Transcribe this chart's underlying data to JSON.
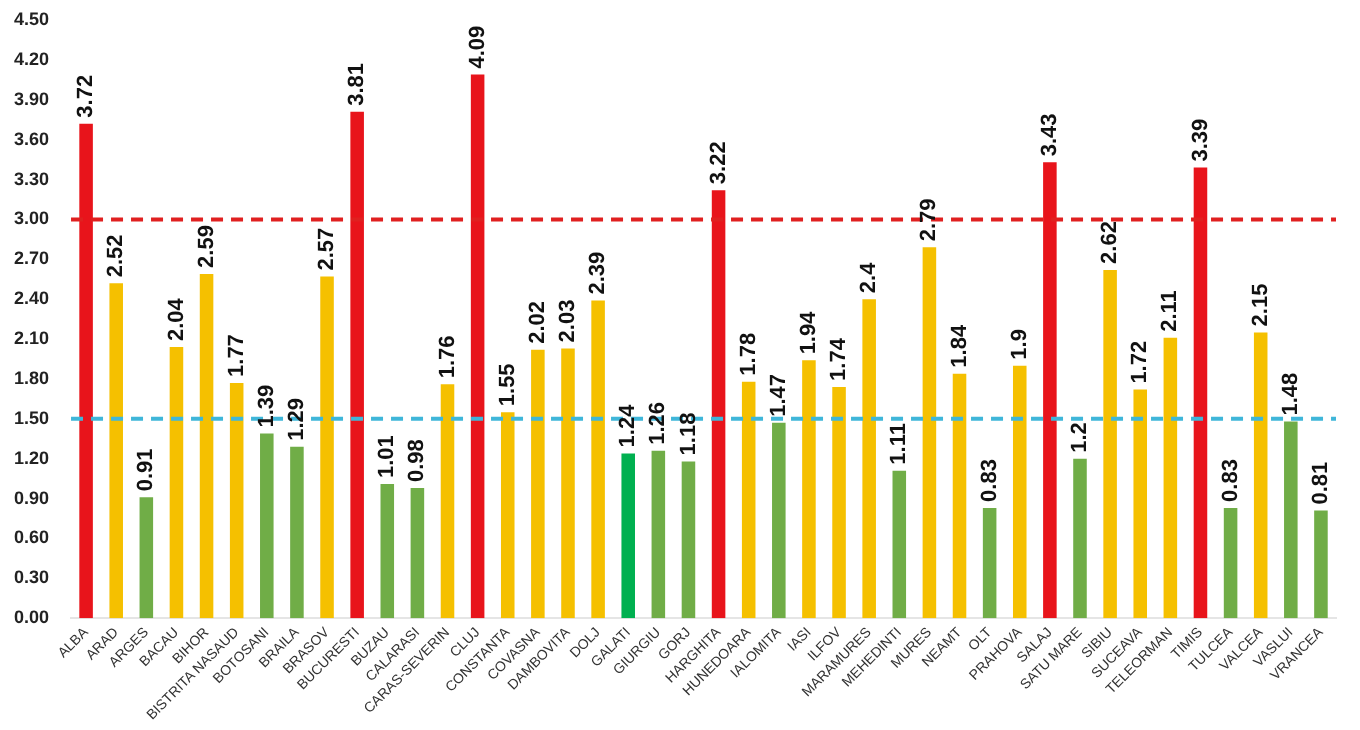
{
  "chart_data": {
    "type": "bar",
    "categories": [
      "ALBA",
      "ARAD",
      "ARGES",
      "BACAU",
      "BIHOR",
      "BISTRITA NASAUD",
      "BOTOSANI",
      "BRAILA",
      "BRASOV",
      "BUCURESTI",
      "BUZAU",
      "CALARASI",
      "CARAS-SEVERIN",
      "CLUJ",
      "CONSTANTA",
      "COVASNA",
      "DAMBOVITA",
      "DOLJ",
      "GALATI",
      "GIURGIU",
      "GORJ",
      "HARGHITA",
      "HUNEDOARA",
      "IALOMITA",
      "IASI",
      "ILFOV",
      "MARAMURES",
      "MEHEDINTI",
      "MURES",
      "NEAMT",
      "OLT",
      "PRAHOVA",
      "SALAJ",
      "SATU MARE",
      "SIBIU",
      "SUCEAVA",
      "TELEORMAN",
      "TIMIS",
      "TULCEA",
      "VALCEA",
      "VASLUI",
      "VRANCEA"
    ],
    "values": [
      3.72,
      2.52,
      0.91,
      2.04,
      2.59,
      1.77,
      1.39,
      1.29,
      2.57,
      3.81,
      1.01,
      0.98,
      1.76,
      4.09,
      1.55,
      2.02,
      2.03,
      2.39,
      1.24,
      1.26,
      1.18,
      3.22,
      1.78,
      1.47,
      1.94,
      1.74,
      2.4,
      1.11,
      2.79,
      1.84,
      0.83,
      1.9,
      3.43,
      1.2,
      2.62,
      1.72,
      2.11,
      3.39,
      0.83,
      2.15,
      1.48,
      0.81
    ],
    "colors": [
      "#e8141b",
      "#f5c000",
      "#70ad47",
      "#f5c000",
      "#f5c000",
      "#f5c000",
      "#70ad47",
      "#70ad47",
      "#f5c000",
      "#e8141b",
      "#70ad47",
      "#70ad47",
      "#f5c000",
      "#e8141b",
      "#f5c000",
      "#f5c000",
      "#f5c000",
      "#f5c000",
      "#00b050",
      "#70ad47",
      "#70ad47",
      "#e8141b",
      "#f5c000",
      "#70ad47",
      "#f5c000",
      "#f5c000",
      "#f5c000",
      "#70ad47",
      "#f5c000",
      "#f5c000",
      "#70ad47",
      "#f5c000",
      "#e8141b",
      "#70ad47",
      "#f5c000",
      "#f5c000",
      "#f5c000",
      "#e8141b",
      "#70ad47",
      "#f5c000",
      "#70ad47",
      "#70ad47"
    ],
    "ylim": [
      0,
      4.5
    ],
    "yticks": [
      {
        "value": 0,
        "label": "0.00"
      },
      {
        "value": 0.3,
        "label": "0.30"
      },
      {
        "value": 0.6,
        "label": "0.60"
      },
      {
        "value": 0.9,
        "label": "0.90"
      },
      {
        "value": 1.2,
        "label": "1.20"
      },
      {
        "value": 1.5,
        "label": "1.50"
      },
      {
        "value": 1.8,
        "label": "1.80"
      },
      {
        "value": 2.1,
        "label": "2.10"
      },
      {
        "value": 2.4,
        "label": "2.40"
      },
      {
        "value": 2.7,
        "label": "2.70"
      },
      {
        "value": 3,
        "label": "3.00"
      },
      {
        "value": 3.3,
        "label": "3.30"
      },
      {
        "value": 3.6,
        "label": "3.60"
      },
      {
        "value": 3.9,
        "label": "3.90"
      },
      {
        "value": 4.2,
        "label": "4.20"
      },
      {
        "value": 4.5,
        "label": "4.50"
      }
    ],
    "ref_lines": [
      {
        "axis": "y",
        "value": 3,
        "label": null,
        "color": "#e02020",
        "line_style": "dashed"
      },
      {
        "axis": "y",
        "value": 1.5,
        "label": null,
        "color": "#3fb6d9",
        "line_style": "dashed"
      }
    ],
    "data_labels": true,
    "grid": false,
    "legend": false
  }
}
